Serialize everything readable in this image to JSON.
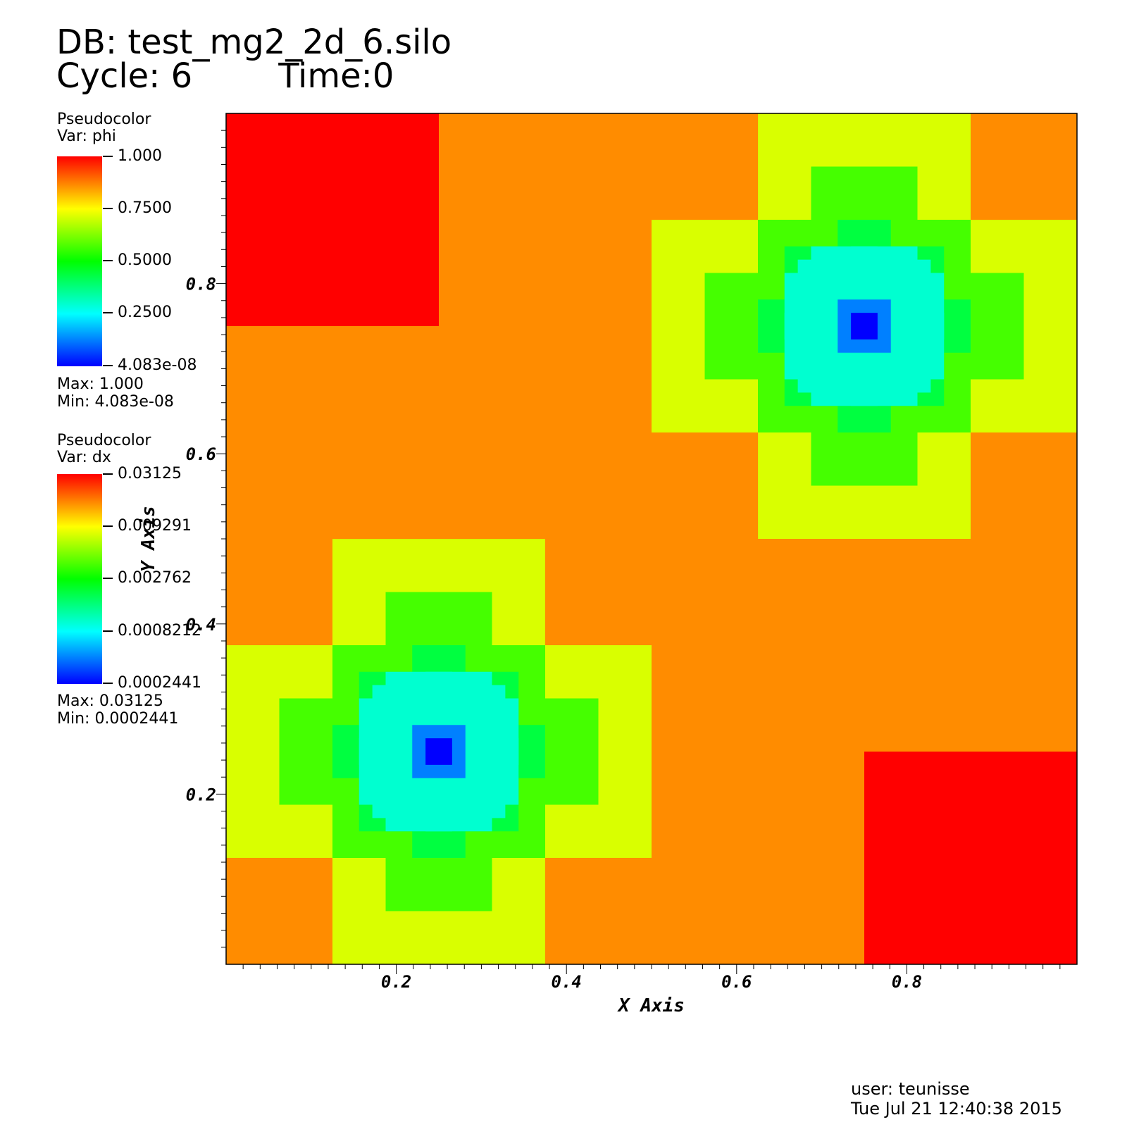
{
  "header": {
    "db_line": "DB: test_mg2_2d_6.silo",
    "cycle_line": "Cycle: 6        Time:0"
  },
  "legends": [
    {
      "plot_type": "Pseudocolor",
      "var": "Var: phi",
      "labels": [
        "1.000",
        "0.7500",
        "0.5000",
        "0.2500",
        "4.083e-08"
      ],
      "max": "Max:  1.000",
      "min": "Min:  4.083e-08"
    },
    {
      "plot_type": "Pseudocolor",
      "var": "Var: dx",
      "labels": [
        "0.03125",
        "0.009291",
        "0.002762",
        "0.0008212",
        "0.0002441"
      ],
      "max": "Max:  0.03125",
      "min": "Min:  0.0002441"
    }
  ],
  "footer": {
    "user": "user: teunisse",
    "date": "Tue Jul 21 12:40:38 2015"
  },
  "colors": {
    "red": "#ff0000",
    "orange": "#ff8c00",
    "yellow": "#d9ff00",
    "green": "#45ff00",
    "green2": "#00ff40",
    "cyan": "#00ffd0",
    "blue": "#0080ff",
    "darkblue": "#0000ff"
  },
  "chart_data": {
    "type": "heatmap",
    "xlabel": "X Axis",
    "ylabel": "Y Axis",
    "xlim": [
      0,
      1
    ],
    "ylim": [
      0,
      1
    ],
    "xticks": [
      "0.2",
      "0.4",
      "0.6",
      "0.8"
    ],
    "yticks": [
      "0.2",
      "0.4",
      "0.6",
      "0.8"
    ],
    "background": "orange",
    "blocks": [
      {
        "x": [
          0.0,
          0.25
        ],
        "y": [
          0.75,
          1.0
        ],
        "c": "red"
      },
      {
        "x": [
          0.75,
          1.0
        ],
        "y": [
          0.0,
          0.25
        ],
        "c": "red"
      },
      {
        "x": [
          0.125,
          0.375
        ],
        "y": [
          0.0,
          0.5
        ],
        "c": "yellow"
      },
      {
        "x": [
          0.0,
          0.5
        ],
        "y": [
          0.125,
          0.375
        ],
        "c": "yellow"
      },
      {
        "x": [
          0.1875,
          0.3125
        ],
        "y": [
          0.0625,
          0.4375
        ],
        "c": "green"
      },
      {
        "x": [
          0.0625,
          0.4375
        ],
        "y": [
          0.1875,
          0.3125
        ],
        "c": "green"
      },
      {
        "x": [
          0.125,
          0.375
        ],
        "y": [
          0.125,
          0.375
        ],
        "c": "green"
      },
      {
        "x": [
          0.21875,
          0.28125
        ],
        "y": [
          0.125,
          0.375
        ],
        "c": "green2"
      },
      {
        "x": [
          0.125,
          0.375
        ],
        "y": [
          0.21875,
          0.28125
        ],
        "c": "green2"
      },
      {
        "x": [
          0.15625,
          0.34375
        ],
        "y": [
          0.15625,
          0.34375
        ],
        "c": "green2"
      },
      {
        "x": [
          0.1875,
          0.3125
        ],
        "y": [
          0.15625,
          0.34375
        ],
        "c": "cyan"
      },
      {
        "x": [
          0.15625,
          0.34375
        ],
        "y": [
          0.1875,
          0.3125
        ],
        "c": "cyan"
      },
      {
        "x": [
          0.171875,
          0.328125
        ],
        "y": [
          0.171875,
          0.328125
        ],
        "c": "cyan"
      },
      {
        "x": [
          0.234375,
          0.265625
        ],
        "y": [
          0.15625,
          0.34375
        ],
        "c": "cyan"
      },
      {
        "x": [
          0.15625,
          0.34375
        ],
        "y": [
          0.234375,
          0.265625
        ],
        "c": "cyan"
      },
      {
        "x": [
          0.21875,
          0.28125
        ],
        "y": [
          0.21875,
          0.28125
        ],
        "c": "blue"
      },
      {
        "x": [
          0.234375,
          0.265625
        ],
        "y": [
          0.234375,
          0.265625
        ],
        "c": "darkblue"
      },
      {
        "x": [
          0.625,
          0.875
        ],
        "y": [
          0.5,
          1.0
        ],
        "c": "yellow"
      },
      {
        "x": [
          0.5,
          1.0
        ],
        "y": [
          0.625,
          0.875
        ],
        "c": "yellow"
      },
      {
        "x": [
          0.6875,
          0.8125
        ],
        "y": [
          0.5625,
          0.9375
        ],
        "c": "green"
      },
      {
        "x": [
          0.5625,
          0.9375
        ],
        "y": [
          0.6875,
          0.8125
        ],
        "c": "green"
      },
      {
        "x": [
          0.625,
          0.875
        ],
        "y": [
          0.625,
          0.875
        ],
        "c": "green"
      },
      {
        "x": [
          0.71875,
          0.78125
        ],
        "y": [
          0.625,
          0.875
        ],
        "c": "green2"
      },
      {
        "x": [
          0.625,
          0.875
        ],
        "y": [
          0.71875,
          0.78125
        ],
        "c": "green2"
      },
      {
        "x": [
          0.65625,
          0.84375
        ],
        "y": [
          0.65625,
          0.84375
        ],
        "c": "green2"
      },
      {
        "x": [
          0.6875,
          0.8125
        ],
        "y": [
          0.65625,
          0.84375
        ],
        "c": "cyan"
      },
      {
        "x": [
          0.65625,
          0.84375
        ],
        "y": [
          0.6875,
          0.8125
        ],
        "c": "cyan"
      },
      {
        "x": [
          0.671875,
          0.828125
        ],
        "y": [
          0.671875,
          0.828125
        ],
        "c": "cyan"
      },
      {
        "x": [
          0.734375,
          0.765625
        ],
        "y": [
          0.65625,
          0.84375
        ],
        "c": "cyan"
      },
      {
        "x": [
          0.65625,
          0.84375
        ],
        "y": [
          0.734375,
          0.765625
        ],
        "c": "cyan"
      },
      {
        "x": [
          0.71875,
          0.78125
        ],
        "y": [
          0.71875,
          0.78125
        ],
        "c": "blue"
      },
      {
        "x": [
          0.734375,
          0.765625
        ],
        "y": [
          0.734375,
          0.765625
        ],
        "c": "darkblue"
      }
    ]
  }
}
